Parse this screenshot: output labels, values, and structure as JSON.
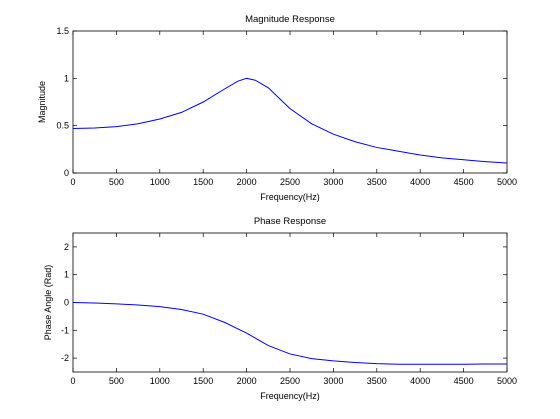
{
  "chart_data": [
    {
      "type": "line",
      "title": "Magnitude Response",
      "xlabel": "Frequency(Hz)",
      "ylabel": "Magnitude",
      "xlim": [
        0,
        5000
      ],
      "ylim": [
        0,
        1.5
      ],
      "xticks": [
        0,
        500,
        1000,
        1500,
        2000,
        2500,
        3000,
        3500,
        4000,
        4500,
        5000
      ],
      "xtick_labels": [
        "0",
        "500",
        "1000",
        "1500",
        "2000",
        "2500",
        "3000",
        "3500",
        "4000",
        "4500",
        "5000"
      ],
      "yticks": [
        0,
        0.5,
        1,
        1.5
      ],
      "ytick_labels": [
        "0",
        "0.5",
        "1",
        "1.5"
      ],
      "grid": false,
      "line_color": "#0000ff",
      "series": [
        {
          "x": [
            0,
            250,
            500,
            750,
            1000,
            1250,
            1500,
            1750,
            1900,
            2000,
            2100,
            2250,
            2500,
            2750,
            3000,
            3250,
            3500,
            3750,
            4000,
            4250,
            4500,
            4750,
            5000
          ],
          "values": [
            0.47,
            0.475,
            0.49,
            0.52,
            0.57,
            0.64,
            0.75,
            0.89,
            0.97,
            1.0,
            0.98,
            0.9,
            0.68,
            0.52,
            0.41,
            0.33,
            0.27,
            0.23,
            0.19,
            0.16,
            0.14,
            0.12,
            0.105
          ]
        }
      ]
    },
    {
      "type": "line",
      "title": "Phase Response",
      "xlabel": "Frequency(Hz)",
      "ylabel": "Phase Angle (Rad)",
      "xlim": [
        0,
        5000
      ],
      "ylim": [
        -2.5,
        2.5
      ],
      "xticks": [
        0,
        500,
        1000,
        1500,
        2000,
        2500,
        3000,
        3500,
        4000,
        4500,
        5000
      ],
      "xtick_labels": [
        "0",
        "500",
        "1000",
        "1500",
        "2000",
        "2500",
        "3000",
        "3500",
        "4000",
        "4500",
        "5000"
      ],
      "yticks": [
        -2,
        -1,
        0,
        1,
        2
      ],
      "ytick_labels": [
        "-2",
        "-1",
        "0",
        "1",
        "2"
      ],
      "grid": false,
      "line_color": "#0000ff",
      "series": [
        {
          "x": [
            0,
            250,
            500,
            750,
            1000,
            1250,
            1500,
            1750,
            1900,
            2000,
            2100,
            2250,
            2500,
            2750,
            3000,
            3250,
            3500,
            3750,
            4000,
            4250,
            4500,
            4750,
            5000
          ],
          "values": [
            0.0,
            -0.02,
            -0.05,
            -0.09,
            -0.15,
            -0.25,
            -0.42,
            -0.72,
            -0.95,
            -1.1,
            -1.28,
            -1.55,
            -1.85,
            -2.02,
            -2.1,
            -2.16,
            -2.2,
            -2.22,
            -2.22,
            -2.22,
            -2.22,
            -2.21,
            -2.21
          ]
        }
      ]
    }
  ]
}
